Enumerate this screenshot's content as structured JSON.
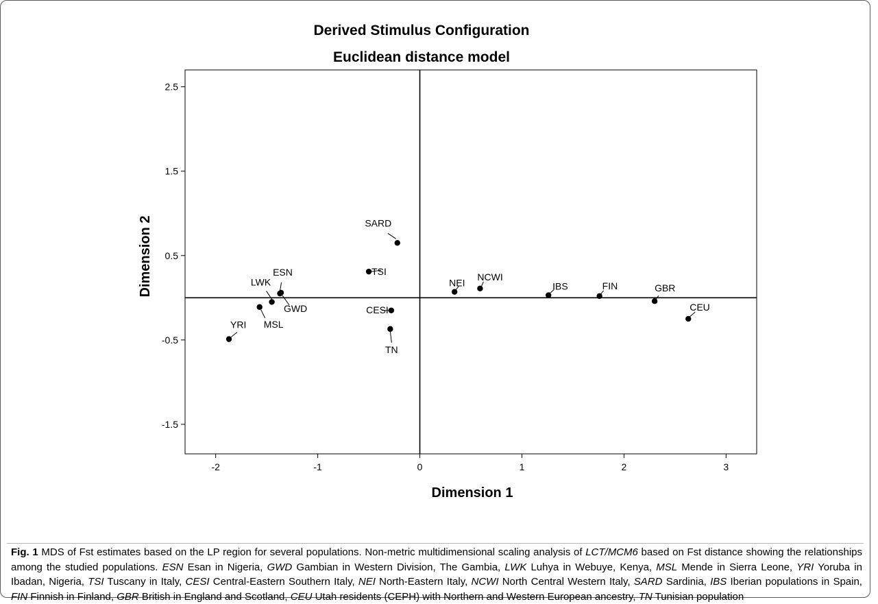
{
  "chart_data": {
    "type": "scatter",
    "title": "Derived Stimulus Configuration",
    "subtitle": "Euclidean distance model",
    "xlabel": "Dimension 1",
    "ylabel": "Dimension 2",
    "xlim": [
      -2.3,
      3.3
    ],
    "ylim": [
      -1.85,
      2.7
    ],
    "xticks": [
      -2,
      -1,
      0,
      1,
      2,
      3
    ],
    "xtick_labels": [
      "-2",
      "-1",
      "0",
      "1",
      "2",
      "3"
    ],
    "yticks": [
      2.5,
      1.5,
      0.5,
      -0.5,
      -1.5
    ],
    "ytick_labels": [
      "2.5",
      "1.5",
      "0.5",
      "-0.5",
      "-1.5"
    ],
    "reference_lines": {
      "x": 0,
      "y": 0
    },
    "grid": false,
    "points": [
      {
        "label": "SARD",
        "x": -0.22,
        "y": 0.65
      },
      {
        "label": "TSI",
        "x": -0.5,
        "y": 0.31
      },
      {
        "label": "ESN",
        "x": -1.37,
        "y": 0.05
      },
      {
        "label": "LWK",
        "x": -1.45,
        "y": -0.05
      },
      {
        "label": "GWD",
        "x": -1.36,
        "y": 0.06
      },
      {
        "label": "MSL",
        "x": -1.57,
        "y": -0.11
      },
      {
        "label": "YRI",
        "x": -1.87,
        "y": -0.49
      },
      {
        "label": "CESI",
        "x": -0.28,
        "y": -0.15
      },
      {
        "label": "TN",
        "x": -0.29,
        "y": -0.37
      },
      {
        "label": "NEI",
        "x": 0.34,
        "y": 0.07
      },
      {
        "label": "NCWI",
        "x": 0.59,
        "y": 0.11
      },
      {
        "label": "IBS",
        "x": 1.26,
        "y": 0.03
      },
      {
        "label": "FIN",
        "x": 1.76,
        "y": 0.02
      },
      {
        "label": "GBR",
        "x": 2.3,
        "y": -0.04
      },
      {
        "label": "CEU",
        "x": 2.63,
        "y": -0.25
      }
    ]
  },
  "caption": {
    "fig": "Fig. 1",
    "parts": [
      {
        "t": " MDS of Fst estimates based on the LP region for several populations. Non-metric multidimensional scaling analysis of ",
        "i": false
      },
      {
        "t": "LCT/MCM6",
        "i": true
      },
      {
        "t": " based on Fst distance showing the relationships among the studied populations. ",
        "i": false
      },
      {
        "t": "ESN",
        "i": true
      },
      {
        "t": " Esan in Nigeria, ",
        "i": false
      },
      {
        "t": "GWD",
        "i": true
      },
      {
        "t": " Gambian in Western Division, The Gambia, ",
        "i": false
      },
      {
        "t": "LWK",
        "i": true
      },
      {
        "t": " Luhya in Webuye, Kenya, ",
        "i": false
      },
      {
        "t": "MSL",
        "i": true
      },
      {
        "t": " Mende in Sierra Leone, ",
        "i": false
      },
      {
        "t": "YRI",
        "i": true
      },
      {
        "t": " Yoruba in Ibadan, Nigeria, ",
        "i": false
      },
      {
        "t": "TSI",
        "i": true
      },
      {
        "t": " Tuscany in Italy, ",
        "i": false
      },
      {
        "t": "CESI",
        "i": true
      },
      {
        "t": " Central-Eastern Southern Italy, ",
        "i": false
      },
      {
        "t": "NEI",
        "i": true
      },
      {
        "t": " North-Eastern Italy, ",
        "i": false
      },
      {
        "t": "NCWI",
        "i": true
      },
      {
        "t": " North Central Western Italy, ",
        "i": false
      },
      {
        "t": "SARD",
        "i": true
      },
      {
        "t": " Sardinia, ",
        "i": false
      },
      {
        "t": "IBS",
        "i": true
      },
      {
        "t": " Iberian populations in Spain, ",
        "i": false
      },
      {
        "t": "FIN",
        "i": true
      },
      {
        "t": " Finnish in Finland, ",
        "i": false
      },
      {
        "t": "GBR",
        "i": true
      },
      {
        "t": " British in England and Scotland, ",
        "i": false
      },
      {
        "t": "CEU",
        "i": true
      },
      {
        "t": " Utah residents (CEPH) with Northern and Western European ancestry, ",
        "i": false
      },
      {
        "t": "TN",
        "i": true
      },
      {
        "t": " Tunisian population",
        "i": false
      }
    ]
  }
}
